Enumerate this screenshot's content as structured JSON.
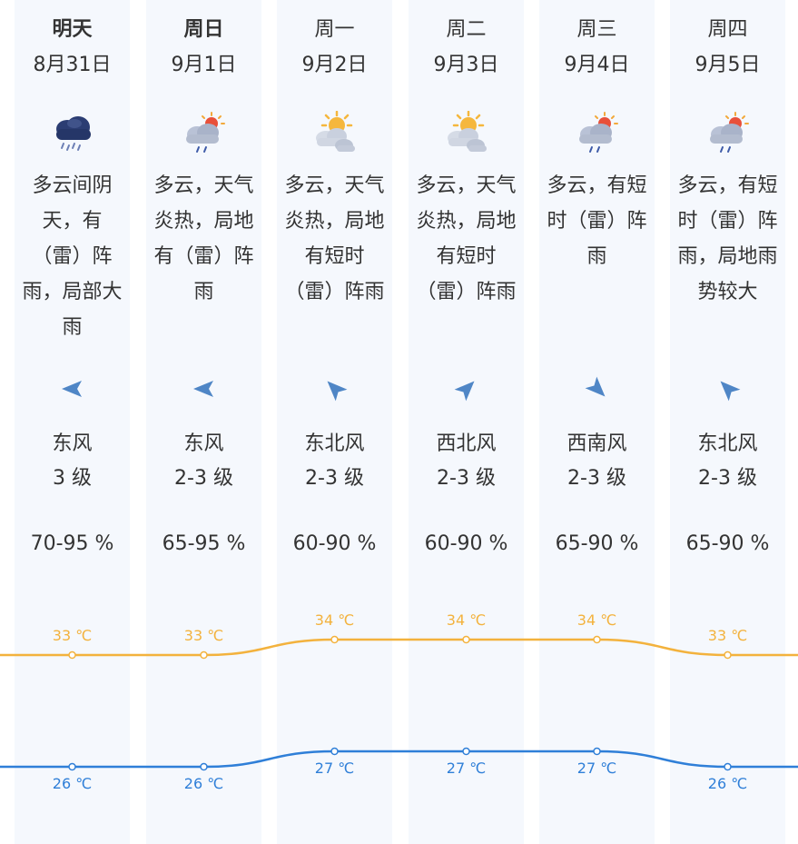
{
  "forecast": [
    {
      "day": "明天",
      "date": "8月31日",
      "icon": "rain-cloud-icon",
      "desc": [
        "多云间阴",
        "天，有",
        "（雷）阵",
        "雨，局部大",
        "雨"
      ],
      "wind_dir": "东风",
      "wind_level": "3 级",
      "wind_angle": 180,
      "humidity": "70-95 %",
      "high": "33 ℃",
      "low": "26 ℃"
    },
    {
      "day": "周日",
      "date": "9月1日",
      "icon": "sun-cloud-rain-icon",
      "desc": [
        "多云，天气",
        "炎热，局地",
        "有（雷）阵",
        "雨"
      ],
      "wind_dir": "东风",
      "wind_level": "2-3 级",
      "wind_angle": 180,
      "humidity": "65-95 %",
      "high": "33 ℃",
      "low": "26 ℃"
    },
    {
      "day": "周一",
      "date": "9月2日",
      "icon": "sun-behind-clouds-icon",
      "desc": [
        "多云，天气",
        "炎热，局地",
        "有短时",
        "（雷）阵雨"
      ],
      "wind_dir": "东北风",
      "wind_level": "2-3 级",
      "wind_angle": 225,
      "humidity": "60-90 %",
      "high": "34 ℃",
      "low": "27 ℃"
    },
    {
      "day": "周二",
      "date": "9月3日",
      "icon": "sun-behind-clouds-icon",
      "desc": [
        "多云，天气",
        "炎热，局地",
        "有短时",
        "（雷）阵雨"
      ],
      "wind_dir": "西北风",
      "wind_level": "2-3 级",
      "wind_angle": 315,
      "humidity": "60-90 %",
      "high": "34 ℃",
      "low": "27 ℃"
    },
    {
      "day": "周三",
      "date": "9月4日",
      "icon": "sun-cloud-rain-icon",
      "desc": [
        "多云，有短",
        "时（雷）阵",
        "雨"
      ],
      "wind_dir": "西南风",
      "wind_level": "2-3 级",
      "wind_angle": 45,
      "humidity": "65-90 %",
      "high": "34 ℃",
      "low": "27 ℃"
    },
    {
      "day": "周四",
      "date": "9月5日",
      "icon": "sun-cloud-rain-icon",
      "desc": [
        "多云，有短",
        "时（雷）阵",
        "雨，局地雨",
        "势较大"
      ],
      "wind_dir": "东北风",
      "wind_level": "2-3 级",
      "wind_angle": 225,
      "humidity": "65-90 %",
      "high": "33 ℃",
      "low": "26 ℃"
    }
  ],
  "colors": {
    "high_line": "#f3b23d",
    "low_line": "#2f7fd8",
    "column_bg": "#f5f8fd",
    "arrow": "#4f86c6"
  },
  "chart_data": {
    "type": "line",
    "x": [
      "8月31日",
      "9月1日",
      "9月2日",
      "9月3日",
      "9月4日",
      "9月5日"
    ],
    "series": [
      {
        "values": [
          33,
          33,
          34,
          34,
          34,
          33
        ],
        "unit": "℃"
      },
      {
        "values": [
          26,
          26,
          27,
          27,
          27,
          26
        ],
        "unit": "℃"
      }
    ]
  }
}
